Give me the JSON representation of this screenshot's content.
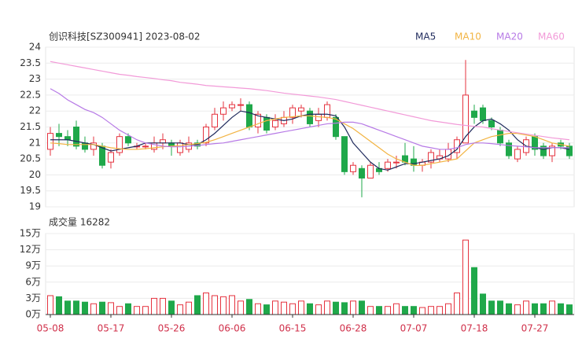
{
  "chart_data": [
    {
      "type": "candlestick",
      "title": "创识科技[SZ300941] 2023-08-02",
      "categories": [
        "05-08",
        null,
        null,
        null,
        null,
        null,
        null,
        "05-17",
        null,
        null,
        null,
        null,
        null,
        null,
        "05-26",
        null,
        null,
        null,
        null,
        null,
        null,
        "06-06",
        null,
        null,
        null,
        null,
        null,
        null,
        "06-15",
        null,
        null,
        null,
        null,
        null,
        null,
        "06-28",
        null,
        null,
        null,
        null,
        null,
        null,
        "07-07",
        null,
        null,
        null,
        null,
        null,
        null,
        "07-18",
        null,
        null,
        null,
        null,
        null,
        null,
        "07-27",
        null,
        null,
        null,
        null
      ],
      "open": [
        20.8,
        21.3,
        21.2,
        21.5,
        21.0,
        20.8,
        20.9,
        20.4,
        20.7,
        21.2,
        20.9,
        20.9,
        20.8,
        21.0,
        21.0,
        20.7,
        20.8,
        21.0,
        21.0,
        21.5,
        21.9,
        22.1,
        22.2,
        22.2,
        21.5,
        21.8,
        21.5,
        21.6,
        21.8,
        22.0,
        22.0,
        21.7,
        21.8,
        21.8,
        21.2,
        20.1,
        20.2,
        19.9,
        20.2,
        20.2,
        20.4,
        20.6,
        20.5,
        20.3,
        20.4,
        20.5,
        20.5,
        20.7,
        21.0,
        22.0,
        22.1,
        21.7,
        21.4,
        21.0,
        20.5,
        20.7,
        21.2,
        20.9,
        20.6,
        21.0,
        20.9
      ],
      "high": [
        21.5,
        21.6,
        21.4,
        21.7,
        21.2,
        21.2,
        21.0,
        20.8,
        21.3,
        21.3,
        21.0,
        21.0,
        21.2,
        21.3,
        21.1,
        21.1,
        21.2,
        21.1,
        21.6,
        22.1,
        22.3,
        22.3,
        22.4,
        22.3,
        22.0,
        21.9,
        21.9,
        22.0,
        22.2,
        22.2,
        22.1,
        22.1,
        22.3,
        21.9,
        21.2,
        20.4,
        20.3,
        20.4,
        20.4,
        20.5,
        20.6,
        21.0,
        20.9,
        20.5,
        20.8,
        20.8,
        21.0,
        21.2,
        23.6,
        22.2,
        22.2,
        21.8,
        21.5,
        21.1,
        20.9,
        21.2,
        21.3,
        21.0,
        21.0,
        21.1,
        21.0
      ],
      "low": [
        20.6,
        20.9,
        20.9,
        20.8,
        20.7,
        20.6,
        20.2,
        20.2,
        20.6,
        20.9,
        20.8,
        20.8,
        20.7,
        20.8,
        20.6,
        20.6,
        20.7,
        20.8,
        20.9,
        21.4,
        21.7,
        22.0,
        22.0,
        21.4,
        21.3,
        21.3,
        21.4,
        21.5,
        21.6,
        21.8,
        21.5,
        21.5,
        21.7,
        21.1,
        20.0,
        20.0,
        19.3,
        19.9,
        20.0,
        20.1,
        20.2,
        20.3,
        20.1,
        20.1,
        20.2,
        20.4,
        20.4,
        20.5,
        21.0,
        21.6,
        21.6,
        21.4,
        20.9,
        20.5,
        20.4,
        20.6,
        20.6,
        20.5,
        20.4,
        20.8,
        20.5
      ],
      "close": [
        21.3,
        21.2,
        21.1,
        20.9,
        20.8,
        21.0,
        20.3,
        20.7,
        21.2,
        21.0,
        20.9,
        20.9,
        21.0,
        21.1,
        20.9,
        21.0,
        21.0,
        20.9,
        21.5,
        21.9,
        22.1,
        22.2,
        22.2,
        21.5,
        21.9,
        21.4,
        21.7,
        21.8,
        22.1,
        22.1,
        21.6,
        21.9,
        22.2,
        21.2,
        20.1,
        20.3,
        19.9,
        20.3,
        20.1,
        20.4,
        20.4,
        20.4,
        20.3,
        20.4,
        20.7,
        20.6,
        20.8,
        21.1,
        22.5,
        21.8,
        21.7,
        21.5,
        21.0,
        20.6,
        20.8,
        21.1,
        20.8,
        20.6,
        20.9,
        20.9,
        20.6
      ],
      "up_color": "#e5333f",
      "down_color": "#1fa84a",
      "ylim": [
        19,
        24
      ],
      "yticks": [
        19,
        19.5,
        20,
        20.5,
        21,
        21.5,
        22,
        22.5,
        23,
        23.5,
        24
      ],
      "grid": true,
      "series": [
        {
          "name": "MA5",
          "color": "#1f2a5c",
          "values": [
            21.1,
            21.1,
            21.1,
            21.05,
            21.0,
            20.95,
            20.85,
            20.75,
            20.8,
            20.85,
            20.9,
            21.0,
            21.0,
            21.0,
            21.0,
            21.0,
            20.95,
            20.95,
            21.1,
            21.3,
            21.55,
            21.8,
            22.0,
            21.95,
            21.85,
            21.8,
            21.75,
            21.7,
            21.75,
            21.85,
            21.9,
            21.9,
            21.9,
            21.85,
            21.5,
            21.0,
            20.7,
            20.4,
            20.2,
            20.15,
            20.25,
            20.35,
            20.35,
            20.4,
            20.45,
            20.5,
            20.6,
            20.8,
            21.2,
            21.5,
            21.7,
            21.75,
            21.6,
            21.4,
            21.1,
            20.9,
            20.85,
            20.8,
            20.85,
            20.85,
            20.8
          ]
        },
        {
          "name": "MA10",
          "color": "#f2b443",
          "values": [
            21.0,
            20.98,
            20.95,
            20.95,
            20.95,
            20.95,
            20.9,
            20.85,
            20.82,
            20.8,
            20.8,
            20.82,
            20.85,
            20.88,
            20.9,
            20.92,
            20.95,
            20.98,
            21.02,
            21.1,
            21.2,
            21.3,
            21.4,
            21.5,
            21.6,
            21.7,
            21.75,
            21.8,
            21.82,
            21.85,
            21.85,
            21.82,
            21.8,
            21.75,
            21.6,
            21.45,
            21.25,
            21.05,
            20.85,
            20.65,
            20.5,
            20.4,
            20.3,
            20.3,
            20.35,
            20.4,
            20.45,
            20.5,
            20.75,
            21.0,
            21.1,
            21.2,
            21.25,
            21.3,
            21.3,
            21.25,
            21.2,
            21.1,
            21.0,
            20.95,
            20.9
          ]
        },
        {
          "name": "MA20",
          "color": "#b77ae6",
          "values": [
            22.7,
            22.55,
            22.35,
            22.2,
            22.05,
            21.95,
            21.8,
            21.6,
            21.4,
            21.25,
            21.1,
            21.0,
            20.95,
            20.9,
            20.88,
            20.88,
            20.9,
            20.92,
            20.95,
            20.98,
            21.0,
            21.05,
            21.1,
            21.15,
            21.2,
            21.25,
            21.3,
            21.35,
            21.4,
            21.45,
            21.5,
            21.55,
            21.6,
            21.62,
            21.65,
            21.65,
            21.6,
            21.5,
            21.4,
            21.3,
            21.2,
            21.1,
            21.0,
            20.9,
            20.85,
            20.8,
            20.8,
            20.85,
            20.95,
            21.0,
            21.0,
            20.98,
            20.95,
            20.92,
            20.9,
            20.88,
            20.85,
            20.85,
            20.85,
            20.85,
            20.85
          ]
        },
        {
          "name": "MA60",
          "color": "#f29ad8",
          "values": [
            23.55,
            23.5,
            23.45,
            23.4,
            23.35,
            23.3,
            23.25,
            23.2,
            23.15,
            23.12,
            23.08,
            23.05,
            23.02,
            22.98,
            22.95,
            22.9,
            22.87,
            22.84,
            22.8,
            22.78,
            22.76,
            22.74,
            22.72,
            22.7,
            22.67,
            22.64,
            22.6,
            22.56,
            22.53,
            22.5,
            22.47,
            22.44,
            22.4,
            22.36,
            22.3,
            22.24,
            22.18,
            22.12,
            22.06,
            22.0,
            21.94,
            21.88,
            21.82,
            21.76,
            21.7,
            21.66,
            21.62,
            21.58,
            21.55,
            21.52,
            21.5,
            21.45,
            21.4,
            21.36,
            21.32,
            21.28,
            21.24,
            21.2,
            21.16,
            21.13,
            21.1
          ]
        }
      ]
    },
    {
      "type": "bar",
      "title": "成交量 16282",
      "values": [
        3.5,
        3.3,
        2.5,
        2.5,
        2.3,
        2.0,
        2.3,
        2.2,
        1.5,
        2.0,
        1.5,
        1.5,
        3.0,
        3.0,
        2.5,
        1.8,
        2.3,
        3.5,
        4.0,
        3.5,
        3.3,
        3.5,
        2.5,
        2.8,
        2.0,
        1.8,
        2.5,
        2.3,
        2.0,
        2.5,
        2.0,
        1.8,
        2.5,
        2.3,
        2.2,
        2.5,
        2.5,
        1.5,
        1.5,
        1.5,
        2.0,
        1.5,
        1.5,
        1.3,
        1.5,
        1.5,
        2.0,
        4.0,
        13.8,
        8.7,
        3.8,
        2.5,
        2.5,
        2.0,
        1.8,
        2.5,
        2.0,
        2.0,
        2.5,
        2.0,
        1.8
      ],
      "ylim": [
        0,
        15
      ],
      "yticks": [
        {
          "value": 0,
          "label": "0万"
        },
        {
          "value": 3,
          "label": "3万"
        },
        {
          "value": 6,
          "label": "6万"
        },
        {
          "value": 9,
          "label": "9万"
        },
        {
          "value": 12,
          "label": "12万"
        },
        {
          "value": 15,
          "label": "15万"
        }
      ],
      "grid": true
    }
  ]
}
